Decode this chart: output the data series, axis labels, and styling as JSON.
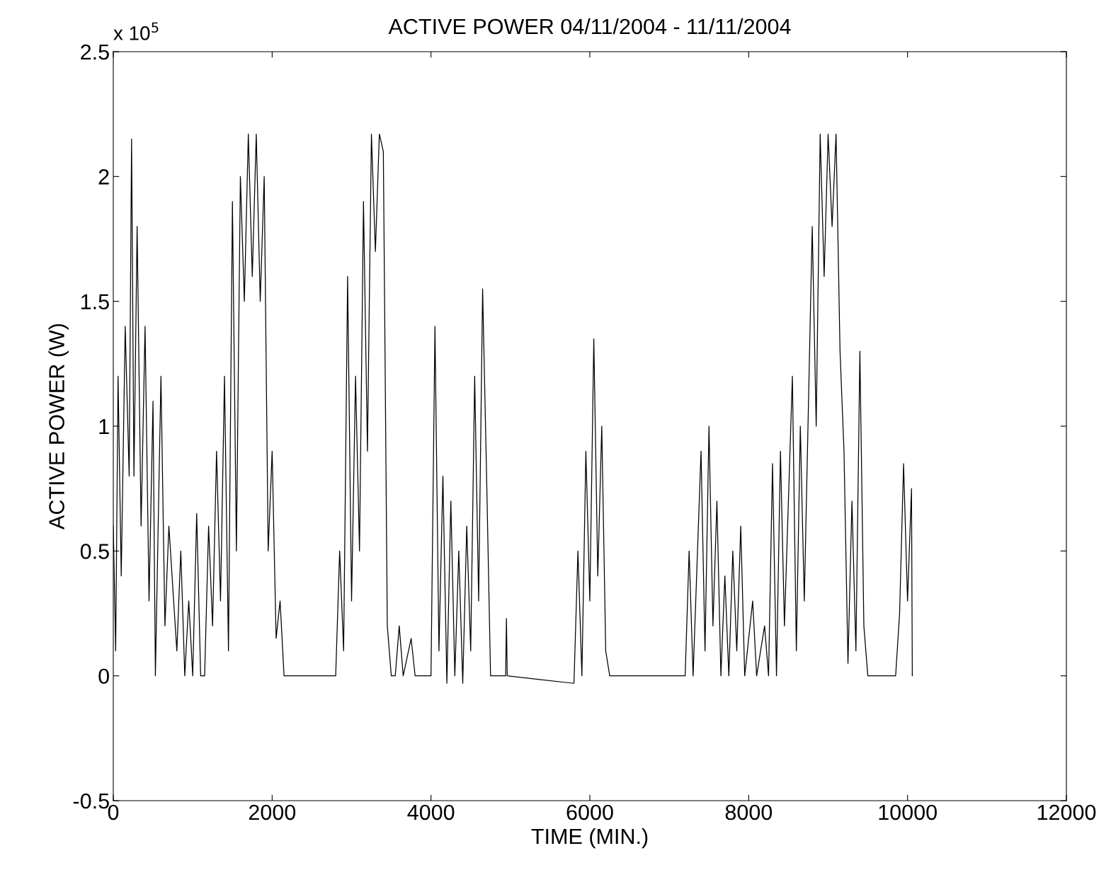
{
  "chart_data": {
    "type": "line",
    "title": "ACTIVE POWER 04/11/2004 - 11/11/2004",
    "xlabel": "TIME (MIN.)",
    "ylabel": "ACTIVE POWER (W)",
    "annotations": [
      "x 10$^{5}$"
    ],
    "x": [
      0,
      30,
      60,
      100,
      150,
      200,
      230,
      260,
      300,
      350,
      400,
      450,
      500,
      530,
      600,
      650,
      700,
      800,
      850,
      900,
      950,
      1000,
      1050,
      1100,
      1150,
      1200,
      1250,
      1300,
      1350,
      1400,
      1450,
      1500,
      1550,
      1600,
      1650,
      1700,
      1750,
      1800,
      1850,
      1900,
      1950,
      2000,
      2050,
      2100,
      2150,
      2800,
      2850,
      2900,
      2950,
      3000,
      3050,
      3100,
      3150,
      3200,
      3250,
      3300,
      3350,
      3400,
      3450,
      3500,
      3550,
      3600,
      3650,
      3750,
      3800,
      4000,
      4050,
      4100,
      4150,
      4200,
      4250,
      4300,
      4350,
      4400,
      4450,
      4500,
      4550,
      4600,
      4650,
      4700,
      4750,
      4940,
      4950,
      4960,
      5800,
      5850,
      5900,
      5950,
      6000,
      6050,
      6100,
      6150,
      6200,
      6250,
      7200,
      7250,
      7300,
      7400,
      7450,
      7500,
      7550,
      7600,
      7650,
      7700,
      7750,
      7800,
      7850,
      7900,
      7950,
      8050,
      8100,
      8200,
      8250,
      8300,
      8350,
      8400,
      8450,
      8550,
      8600,
      8650,
      8700,
      8800,
      8850,
      8900,
      8950,
      9000,
      9050,
      9100,
      9150,
      9200,
      9250,
      9300,
      9350,
      9400,
      9450,
      9500,
      9850,
      9900,
      9950,
      10000,
      10050,
      10060
    ],
    "series": [
      {
        "color": "#000000",
        "values": [
          0.6,
          0.1,
          1.2,
          0.4,
          1.4,
          0.8,
          2.15,
          0.8,
          1.8,
          0.6,
          1.4,
          0.3,
          1.1,
          0.0,
          1.2,
          0.2,
          0.6,
          0.1,
          0.5,
          0.0,
          0.3,
          0.0,
          0.65,
          0.0,
          0.0,
          0.6,
          0.2,
          0.9,
          0.3,
          1.2,
          0.1,
          1.9,
          0.5,
          2.0,
          1.5,
          2.17,
          1.6,
          2.17,
          1.5,
          2.0,
          0.5,
          0.9,
          0.15,
          0.3,
          0.0,
          0.0,
          0.5,
          0.1,
          1.6,
          0.3,
          1.2,
          0.5,
          1.9,
          0.9,
          2.17,
          1.7,
          2.17,
          2.1,
          0.2,
          0.0,
          0.0,
          0.2,
          0.0,
          0.15,
          0.0,
          0.0,
          1.4,
          0.1,
          0.8,
          -0.03,
          0.7,
          0.0,
          0.5,
          -0.03,
          0.6,
          0.1,
          1.2,
          0.3,
          1.55,
          0.8,
          0.0,
          0.0,
          0.23,
          0.0,
          -0.03,
          0.5,
          0.0,
          0.9,
          0.3,
          1.35,
          0.4,
          1.0,
          0.1,
          0.0,
          0.0,
          0.5,
          0.0,
          0.9,
          0.1,
          1.0,
          0.2,
          0.7,
          0.0,
          0.4,
          0.0,
          0.5,
          0.1,
          0.6,
          0.0,
          0.3,
          0.0,
          0.2,
          0.0,
          0.85,
          0.0,
          0.9,
          0.2,
          1.2,
          0.1,
          1.0,
          0.3,
          1.8,
          1.0,
          2.17,
          1.6,
          2.17,
          1.8,
          2.17,
          1.3,
          0.9,
          0.05,
          0.7,
          0.1,
          1.3,
          0.2,
          0.0,
          0.0,
          0.25,
          0.85,
          0.3,
          0.75,
          0.0
        ]
      }
    ],
    "xlim": [
      0,
      12000
    ],
    "xticks": [
      0,
      2000,
      4000,
      6000,
      8000,
      10000,
      12000
    ],
    "ylim": [
      -0.5,
      2.5
    ],
    "yticks": [
      -0.5,
      0,
      0.5,
      1,
      1.5,
      2,
      2.5
    ],
    "grid": false,
    "legend": false
  }
}
